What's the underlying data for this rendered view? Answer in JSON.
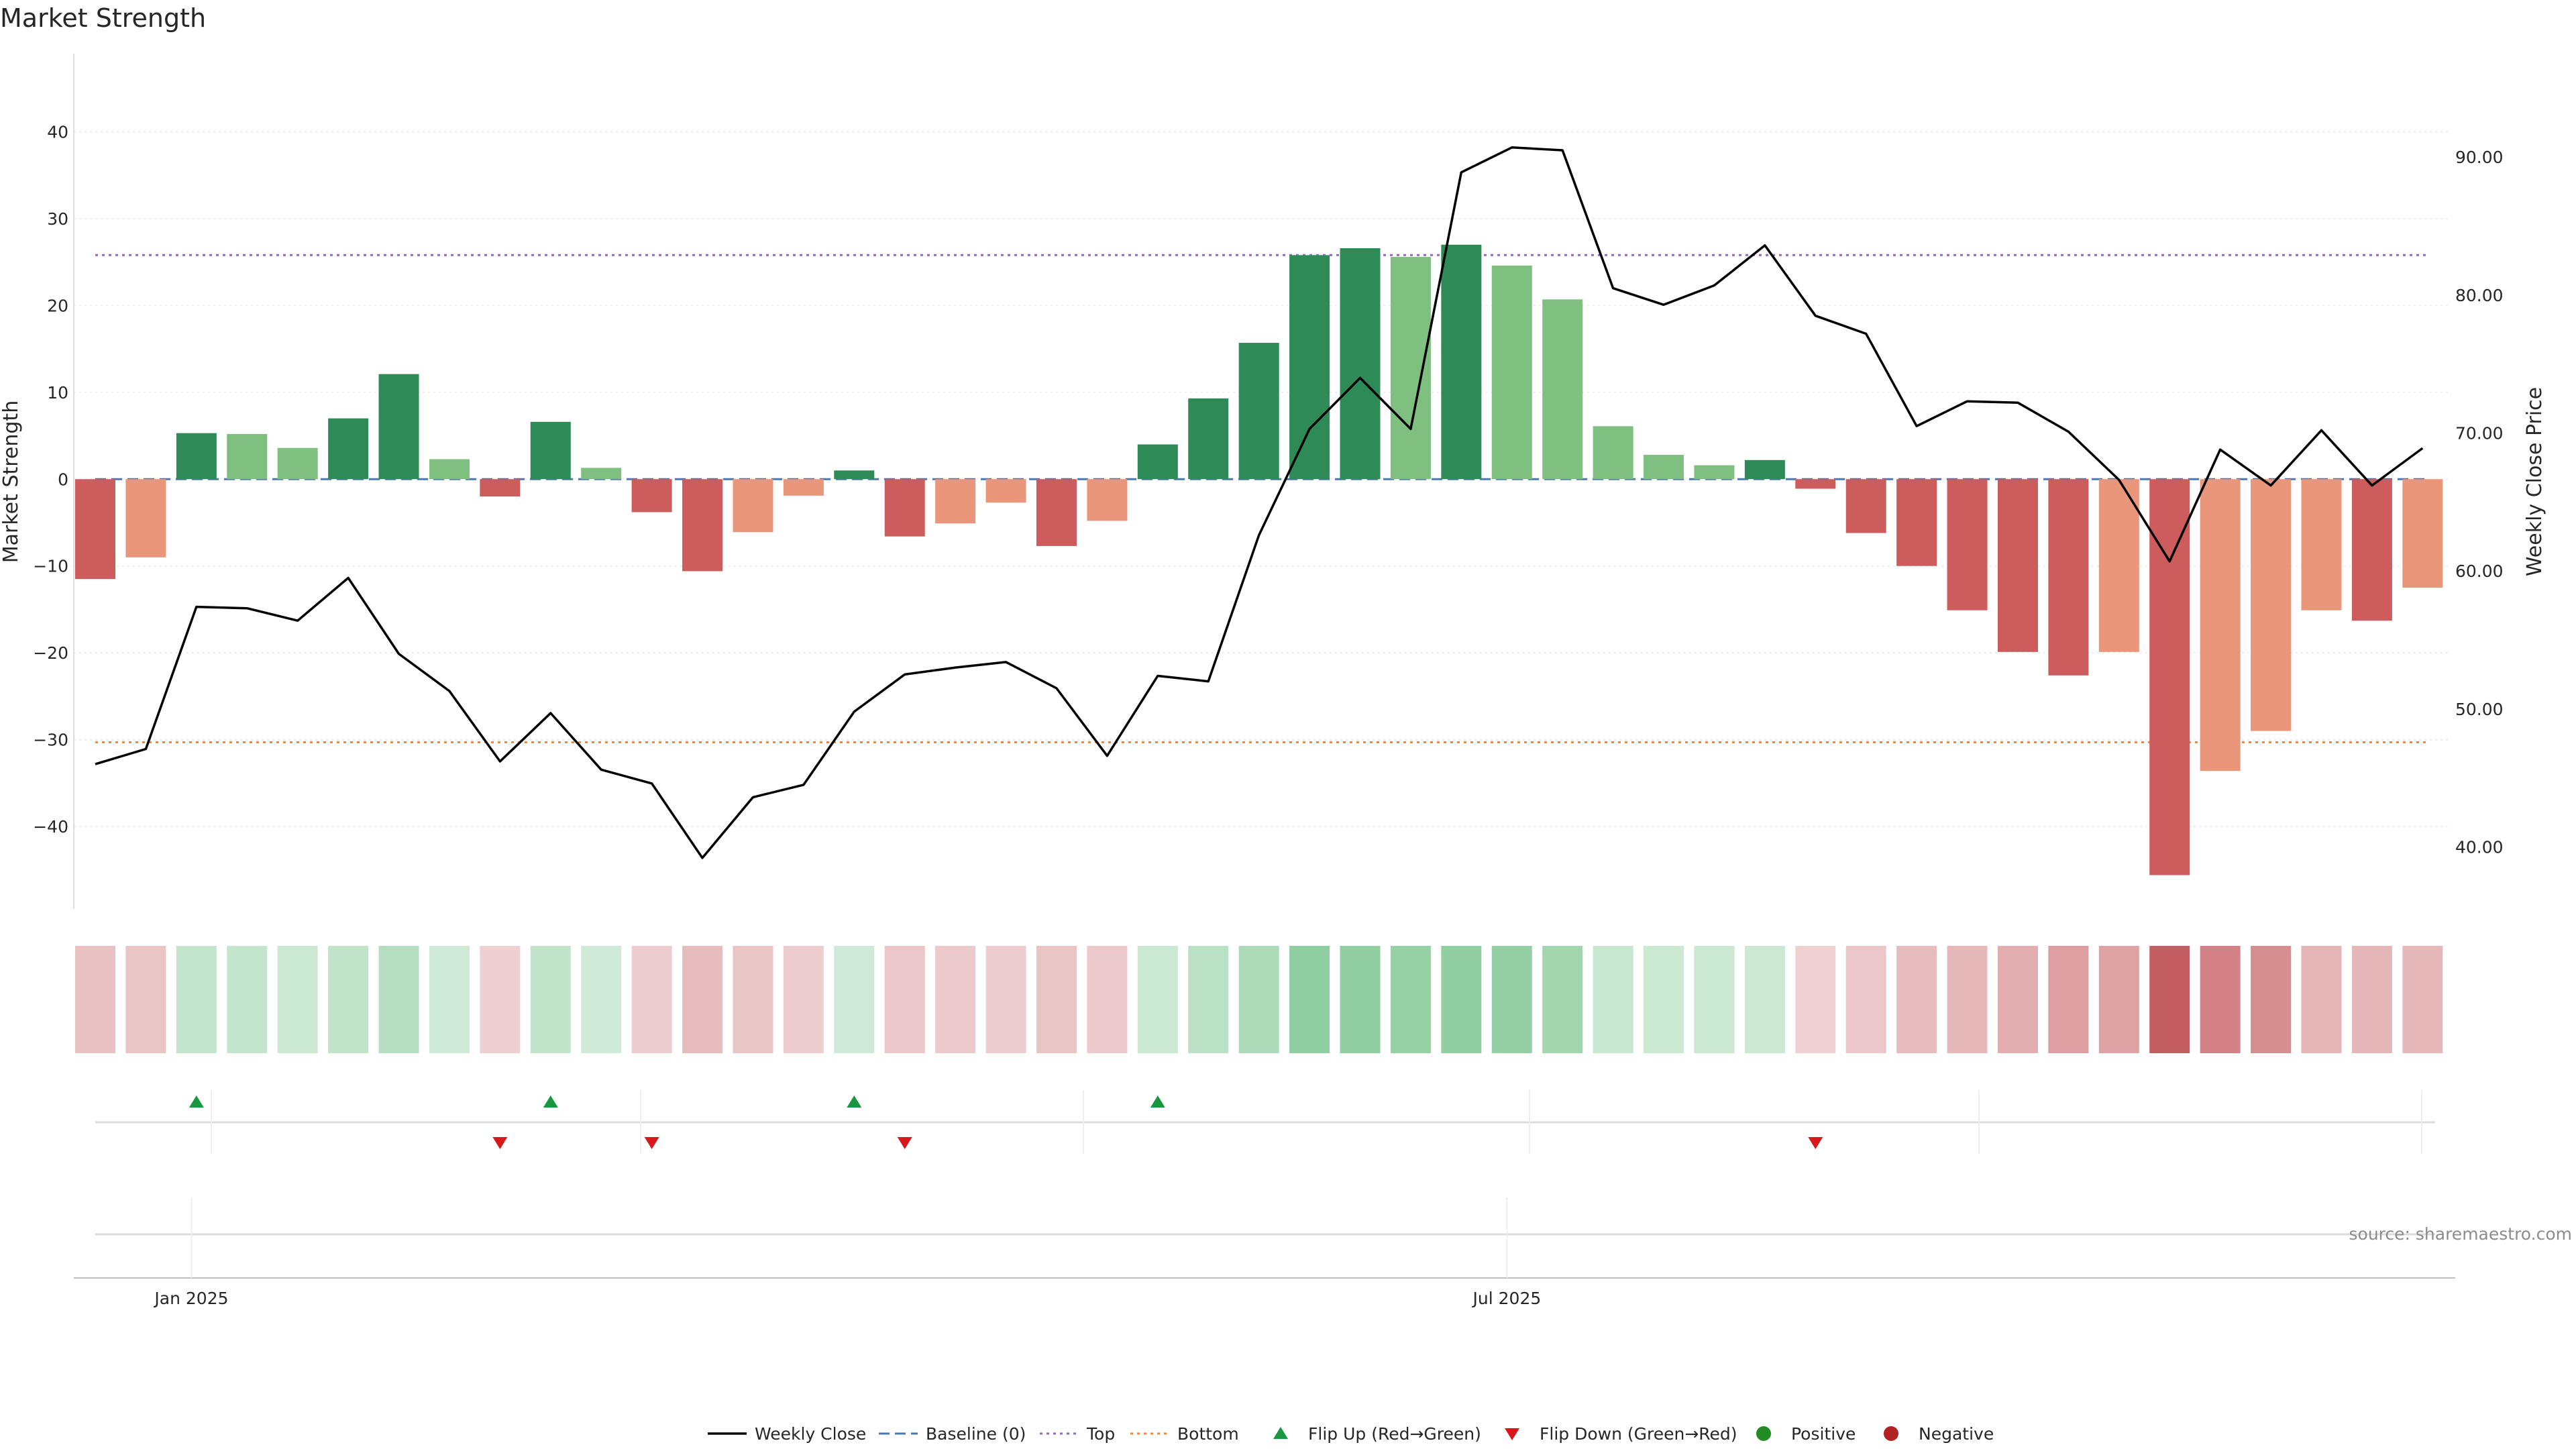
{
  "chart_data": {
    "type": "bar",
    "title": "Market Strength",
    "ylabel": "Market Strength",
    "ylabel_right": "Weekly Close Price",
    "ylim": [
      -49.5,
      49
    ],
    "ylim_right": [
      35.5,
      97.5
    ],
    "y_ticks": [
      "40",
      "30",
      "20",
      "10",
      "0",
      "−10",
      "−20",
      "−30",
      "−40"
    ],
    "y_tick_values": [
      40,
      30,
      20,
      10,
      0,
      -10,
      -20,
      -30,
      -40
    ],
    "y_right_ticks": [
      "90.00",
      "80.00",
      "70.00",
      "60.00",
      "50.00",
      "40.00"
    ],
    "y_right_tick_values": [
      90,
      80,
      70,
      60,
      50,
      40
    ],
    "x_ticks": [
      "Jan 2025",
      "Jul 2025"
    ],
    "x_tick_index": [
      2.3,
      28.3
    ],
    "series": [
      {
        "name": "Market Strength",
        "values": [
          -11.5,
          -9,
          5.3,
          5.2,
          3.6,
          7,
          12.1,
          2.3,
          -2,
          6.6,
          1.3,
          -3.8,
          -10.6,
          -6.1,
          -1.9,
          1,
          -6.6,
          -5.1,
          -2.7,
          -7.7,
          -4.8,
          4,
          9.3,
          15.7,
          25.8,
          26.6,
          25.6,
          27,
          24.6,
          20.7,
          6.1,
          2.8,
          1.6,
          2.2,
          -1.1,
          -6.2,
          -10,
          -15.1,
          -19.9,
          -22.6,
          -19.9,
          -45.6,
          -33.6,
          -29,
          -15.1,
          -16.3,
          -12.5
        ],
        "categories": [
          "neg-strong",
          "neg-weak",
          "pos-strong",
          "pos-weak",
          "pos-weak",
          "pos-strong",
          "pos-strong",
          "pos-weak",
          "neg-strong",
          "pos-strong",
          "pos-weak",
          "neg-strong",
          "neg-strong",
          "neg-weak",
          "neg-weak",
          "pos-strong",
          "neg-strong",
          "neg-weak",
          "neg-weak",
          "neg-strong",
          "neg-weak",
          "pos-strong",
          "pos-strong",
          "pos-strong",
          "pos-strong",
          "pos-strong",
          "pos-weak",
          "pos-strong",
          "pos-weak",
          "pos-weak",
          "pos-weak",
          "pos-weak",
          "pos-weak",
          "pos-strong",
          "neg-strong",
          "neg-strong",
          "neg-strong",
          "neg-strong",
          "neg-strong",
          "neg-strong",
          "neg-weak",
          "neg-strong",
          "neg-weak",
          "neg-weak",
          "neg-weak",
          "neg-strong",
          "neg-weak"
        ]
      },
      {
        "name": "Weekly Close",
        "values": [
          46,
          47.1,
          57.4,
          57.3,
          56.4,
          59.5,
          54,
          51.3,
          46.2,
          49.7,
          45.6,
          44.6,
          39.2,
          43.6,
          44.5,
          49.8,
          52.5,
          53,
          53.4,
          51.5,
          46.6,
          52.4,
          52,
          62.6,
          70.3,
          74,
          70.3,
          88.9,
          90.7,
          90.5,
          80.5,
          79.3,
          80.7,
          83.6,
          78.5,
          77.2,
          70.5,
          72.3,
          72.2,
          70.1,
          66.6,
          60.7,
          68.8,
          66.2,
          70.2,
          66.2,
          68.9
        ]
      }
    ],
    "reference_lines": {
      "baseline": 0,
      "top": 25.8,
      "bottom": -30.3
    },
    "heat_strip": [
      0.24,
      0.2,
      0.27,
      0.26,
      0.22,
      0.3,
      0.4,
      0.18,
      0.11,
      0.28,
      0.16,
      0.14,
      0.26,
      0.2,
      0.13,
      0.18,
      0.19,
      0.17,
      0.13,
      0.2,
      0.17,
      0.22,
      0.35,
      0.46,
      0.73,
      0.72,
      0.66,
      0.72,
      0.69,
      0.58,
      0.24,
      0.21,
      0.21,
      0.2,
      0.1,
      0.18,
      0.26,
      0.3,
      0.38,
      0.5,
      0.46,
      1,
      0.72,
      0.64,
      0.34,
      0.32,
      0.3
    ],
    "flip_up_index": [
      2,
      9,
      15,
      21
    ],
    "flip_down_index": [
      8,
      11,
      16,
      34
    ],
    "legend": [
      "Weekly Close",
      "Baseline (0)",
      "Top",
      "Bottom",
      "Flip Up (Red→Green)",
      "Flip Down (Green→Red)",
      "Positive",
      "Negative"
    ],
    "grid": true,
    "legend_placement": "bottom-center",
    "source": "source: sharemaestro.com"
  },
  "colors": {
    "pos-strong": "#2e8b57",
    "pos-weak": "#7fbf7f",
    "neg-strong": "#cd5c5c",
    "neg-weak": "#e9967a",
    "price_line": "#000000",
    "baseline": "#4a7ab5",
    "top": "#9467bd",
    "bottom": "#f0883e",
    "flip_up": "#1a9641",
    "flip_down": "#d7191c",
    "positive_dot": "#238b23",
    "negative_dot": "#b22222",
    "heat_positive": "#41ab5d",
    "heat_negative": "#b2282e"
  }
}
